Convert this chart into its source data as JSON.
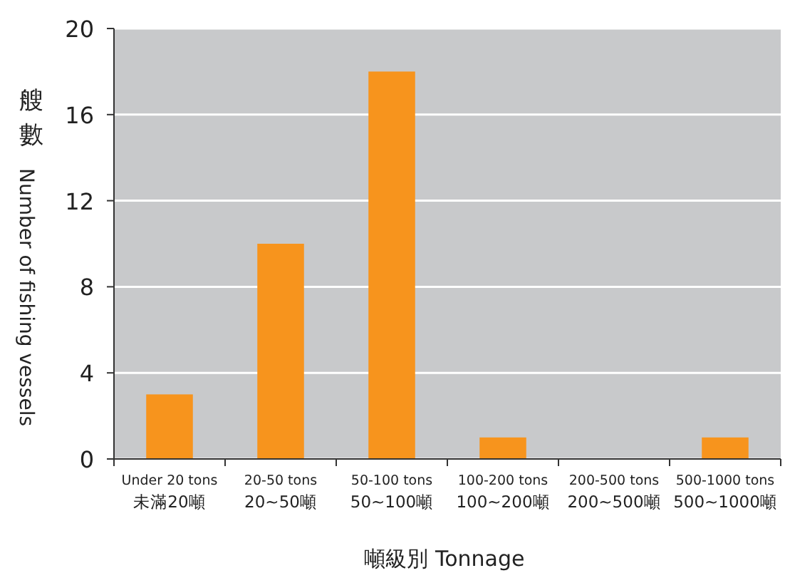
{
  "chart_data": {
    "type": "bar",
    "xlabel": "噸級別 Tonnage",
    "ylabel": "艘數 Number of fishing vessels",
    "categories": [
      "Under 20 tons\n未滿20噸",
      "20-50 tons\n20~50噸",
      "50-100 tons\n50~100噸",
      "100-200 tons\n100~200噸",
      "200-500 tons\n200~500噸",
      "500-1000 tons\n500~1000噸"
    ],
    "values": [
      3,
      10,
      18,
      1,
      0,
      1
    ],
    "color": "#f7941d",
    "ylim": [
      0,
      20
    ],
    "yticks": [
      0,
      4,
      8,
      12,
      16,
      20
    ],
    "grid": "y"
  }
}
